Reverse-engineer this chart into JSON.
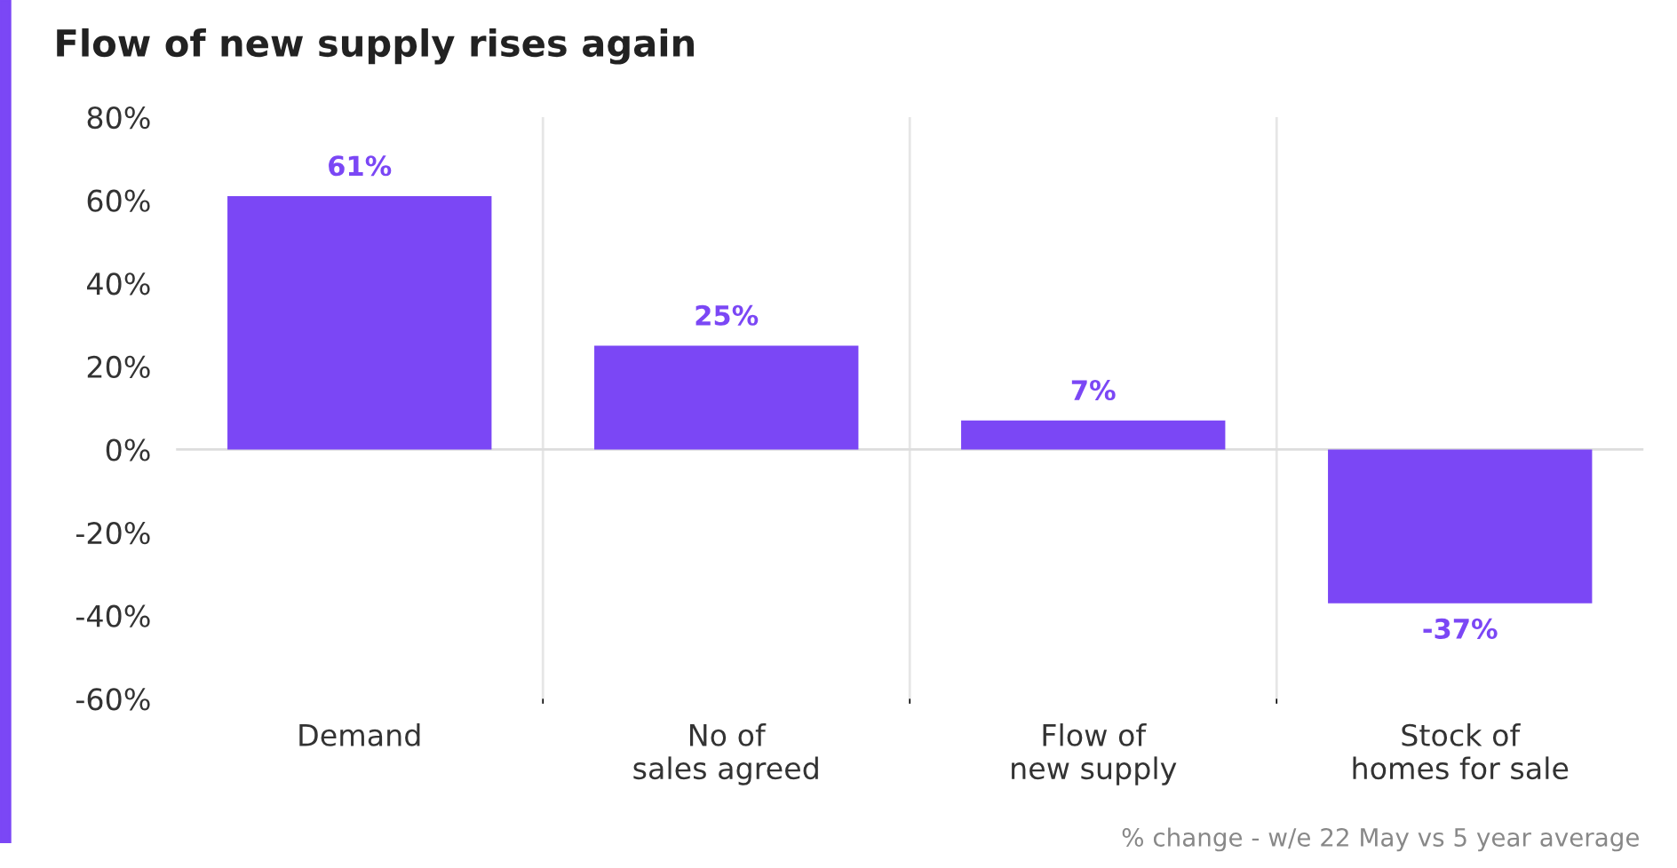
{
  "chart_data": {
    "type": "bar",
    "title": "Flow of new supply rises again",
    "categories": [
      "Demand",
      "No of\nsales agreed",
      "Flow of\nnew supply",
      "Stock of\nhomes for sale"
    ],
    "values": [
      61,
      25,
      7,
      -37
    ],
    "color": "#7b47f5",
    "value_labels": [
      "61%",
      "25%",
      "7%",
      "-37%"
    ],
    "ylim": [
      -60,
      80
    ],
    "yticks": [
      {
        "value": -60,
        "label": "-60%"
      },
      {
        "value": -40,
        "label": "-40%"
      },
      {
        "value": -20,
        "label": "-20%"
      },
      {
        "value": 0,
        "label": "0%"
      },
      {
        "value": 20,
        "label": "20%"
      },
      {
        "value": 40,
        "label": "40%"
      },
      {
        "value": 60,
        "label": "60%"
      },
      {
        "value": 80,
        "label": "80%"
      }
    ],
    "grid": "x",
    "legend": false,
    "ref_lines": [
      {
        "axis": "y",
        "value": 0,
        "color": "#dddddd"
      }
    ],
    "annotations": [
      "% change - w/e 22 May vs 5 year average"
    ]
  }
}
